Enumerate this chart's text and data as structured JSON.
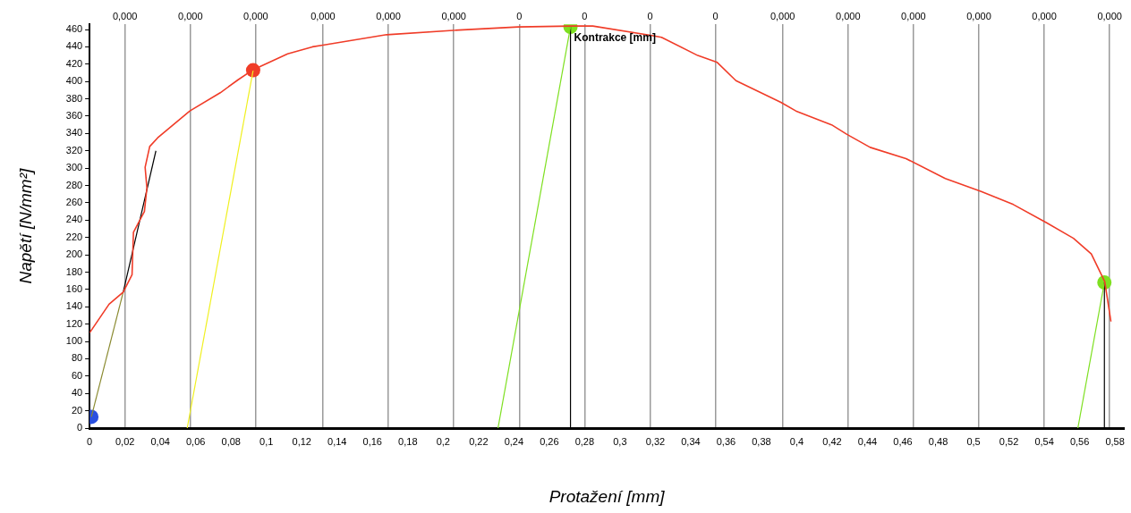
{
  "chart_data": {
    "type": "line",
    "xlabel": "Protažení [mm]",
    "ylabel": "Napětí [N/mm²]",
    "xlim": [
      0,
      0.585
    ],
    "ylim": [
      0,
      466
    ],
    "xticks": [
      0,
      {
        "value": 0.02,
        "label": "0,02"
      },
      {
        "value": 0.04,
        "label": "0,04"
      },
      {
        "value": 0.06,
        "label": "0,06"
      },
      {
        "value": 0.08,
        "label": "0,08"
      },
      {
        "value": 0.1,
        "label": "0,1"
      },
      {
        "value": 0.12,
        "label": "0,12"
      },
      {
        "value": 0.14,
        "label": "0,14"
      },
      {
        "value": 0.16,
        "label": "0,16"
      },
      {
        "value": 0.18,
        "label": "0,18"
      },
      {
        "value": 0.2,
        "label": "0,2"
      },
      {
        "value": 0.22,
        "label": "0,22"
      },
      {
        "value": 0.24,
        "label": "0,24"
      },
      {
        "value": 0.26,
        "label": "0,26"
      },
      {
        "value": 0.28,
        "label": "0,28"
      },
      {
        "value": 0.3,
        "label": "0,3"
      },
      {
        "value": 0.32,
        "label": "0,32"
      },
      {
        "value": 0.34,
        "label": "0,34"
      },
      {
        "value": 0.36,
        "label": "0,36"
      },
      {
        "value": 0.38,
        "label": "0,38"
      },
      {
        "value": 0.4,
        "label": "0,4"
      },
      {
        "value": 0.42,
        "label": "0,42"
      },
      {
        "value": 0.44,
        "label": "0,44"
      },
      {
        "value": 0.46,
        "label": "0,46"
      },
      {
        "value": 0.48,
        "label": "0,48"
      },
      {
        "value": 0.5,
        "label": "0,5"
      },
      {
        "value": 0.52,
        "label": "0,52"
      },
      {
        "value": 0.54,
        "label": "0,54"
      },
      {
        "value": 0.56,
        "label": "0,56"
      },
      {
        "value": 0.58,
        "label": "0,58"
      }
    ],
    "yticks": [
      0,
      20,
      40,
      60,
      80,
      100,
      120,
      140,
      160,
      180,
      200,
      220,
      240,
      260,
      280,
      300,
      320,
      340,
      360,
      380,
      400,
      420,
      440,
      460
    ],
    "x2lim": [
      0,
      0.000468
    ],
    "x2ticks": [
      {
        "value": 1.6e-05,
        "label": "0,000"
      },
      {
        "value": 4.56e-05,
        "label": "0,000"
      },
      {
        "value": 7.52e-05,
        "label": "0,000"
      },
      {
        "value": 0.0001056,
        "label": "0,000"
      },
      {
        "value": 0.0001352,
        "label": "0,000"
      },
      {
        "value": 0.0001648,
        "label": "0,000"
      },
      {
        "value": 0.0001944,
        "label": "0"
      },
      {
        "value": 0.000224,
        "label": "0"
      },
      {
        "value": 0.0002536,
        "label": "0"
      },
      {
        "value": 0.0002832,
        "label": "0"
      },
      {
        "value": 0.0003136,
        "label": "0,000"
      },
      {
        "value": 0.0003432,
        "label": "0,000"
      },
      {
        "value": 0.0003728,
        "label": "0,000"
      },
      {
        "value": 0.0004024,
        "label": "0,000"
      },
      {
        "value": 0.000432,
        "label": "0,000"
      },
      {
        "value": 0.0004616,
        "label": "0,000"
      }
    ],
    "grid": "x",
    "legend": false,
    "annotations": [
      {
        "text": "Kontrakce [mm]",
        "x": 0.272,
        "y": 463
      }
    ],
    "series": [
      {
        "color": "#f03c28",
        "marker": "none",
        "x": [
          0,
          0.011,
          0.019,
          0.024,
          0.0248,
          0.031,
          0.0324,
          0.0314,
          0.034,
          0.0385,
          0.0567,
          0.0739,
          0.084,
          0.092,
          0.112,
          0.126,
          0.132,
          0.168,
          0.2056,
          0.2425,
          0.273,
          0.2846,
          0.318,
          0.3235,
          0.344,
          0.355,
          0.3656,
          0.391,
          0.3995,
          0.4197,
          0.4284,
          0.4415,
          0.4618,
          0.484,
          0.5043,
          0.5225,
          0.5413,
          0.5565,
          0.5666,
          0.5742,
          0.5777
        ],
        "values": [
          110,
          143,
          157,
          177,
          226,
          250,
          277,
          301,
          325,
          335,
          366,
          387,
          402,
          413,
          432,
          440,
          442,
          454,
          459,
          463,
          464,
          464,
          453,
          451,
          430,
          422,
          401,
          376,
          366,
          350,
          339,
          324,
          311,
          288,
          273,
          258,
          237,
          219,
          201,
          169,
          123
        ]
      },
      {
        "color": "#8a8a30",
        "marker": "none",
        "x": [
          0.001,
          0.019
        ],
        "values": [
          13,
          157
        ]
      },
      {
        "color": "#000000",
        "marker": "none",
        "x": [
          0.019,
          0.0375
        ],
        "values": [
          157,
          320
        ]
      },
      {
        "color": "#f0f020",
        "marker": "none",
        "x": [
          0.0552,
          0.0925
        ],
        "values": [
          0,
          413
        ]
      },
      {
        "color": "#7ee020",
        "marker": "none",
        "x": [
          0.231,
          0.272
        ],
        "values": [
          0,
          463
        ]
      },
      {
        "color": "#7ee020",
        "marker": "none",
        "x": [
          0.559,
          0.574
        ],
        "values": [
          0,
          168
        ]
      },
      {
        "color": "#000000",
        "marker": "none",
        "x": [
          0.272,
          0.272
        ],
        "values": [
          0,
          463
        ]
      },
      {
        "color": "#000000",
        "marker": "none",
        "x": [
          0.574,
          0.574
        ],
        "values": [
          0,
          168
        ]
      },
      {
        "type": "scatter",
        "color": "#2a50e0",
        "marker": "circle",
        "x": [
          0.001
        ],
        "values": [
          13
        ]
      },
      {
        "type": "scatter",
        "color": "#f03c28",
        "marker": "circle",
        "x": [
          0.0925
        ],
        "values": [
          413
        ]
      },
      {
        "type": "scatter",
        "color": "#7ee020",
        "marker": "circle",
        "x": [
          0.272
        ],
        "values": [
          463
        ]
      },
      {
        "type": "scatter",
        "color": "#7ee020",
        "marker": "circle",
        "x": [
          0.574
        ],
        "values": [
          168
        ]
      }
    ]
  }
}
